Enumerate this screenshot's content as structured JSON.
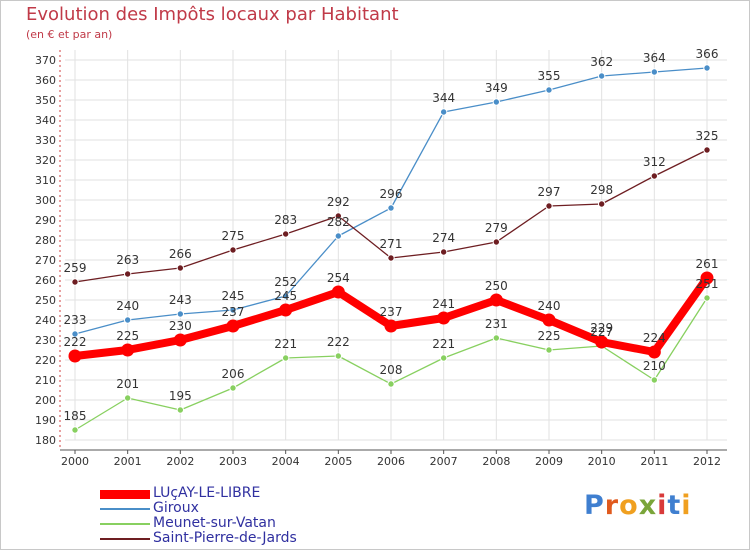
{
  "header": {
    "title": "Evolution des Impôts locaux par Habitant",
    "subtitle": "(en € et par an)"
  },
  "chart_data": {
    "type": "line",
    "title": "Evolution des Impôts locaux par Habitant",
    "subtitle": "(en € et par an)",
    "xlabel": "",
    "ylabel": "",
    "x": [
      "2000",
      "2001",
      "2002",
      "2003",
      "2004",
      "2005",
      "2006",
      "2007",
      "2008",
      "2009",
      "2010",
      "2011",
      "2012"
    ],
    "ylim": [
      180,
      370
    ],
    "yticks": [
      180,
      190,
      200,
      210,
      220,
      230,
      240,
      250,
      260,
      270,
      280,
      290,
      300,
      310,
      320,
      330,
      340,
      350,
      360,
      370
    ],
    "grid": true,
    "legend": "bottom-left",
    "series": [
      {
        "name": "Giroux",
        "color": "#4a8ec8",
        "values": [
          233,
          240,
          243,
          245,
          252,
          282,
          296,
          344,
          349,
          355,
          362,
          364,
          366
        ]
      },
      {
        "name": "Meunet-sur-Vatan",
        "color": "#88d060",
        "values": [
          185,
          201,
          195,
          206,
          221,
          222,
          208,
          221,
          231,
          225,
          227,
          210,
          251
        ]
      },
      {
        "name": "Saint-Pierre-de-Jards",
        "color": "#6e1e22",
        "values": [
          259,
          263,
          266,
          275,
          283,
          292,
          271,
          274,
          279,
          297,
          298,
          312,
          325
        ]
      },
      {
        "name": "LUçAY-LE-LIBRE",
        "color": "#ff0000",
        "highlight": true,
        "values": [
          222,
          225,
          230,
          237,
          245,
          254,
          237,
          241,
          250,
          240,
          229,
          224,
          261
        ]
      }
    ]
  },
  "legend": {
    "items": [
      {
        "label": "LUçAY-LE-LIBRE",
        "color": "#ff0000",
        "text_color": "#3030a0"
      },
      {
        "label": "Giroux",
        "color": "#4a8ec8",
        "text_color": "#3030a0"
      },
      {
        "label": "Meunet-sur-Vatan",
        "color": "#88d060",
        "text_color": "#3030a0"
      },
      {
        "label": "Saint-Pierre-de-Jards",
        "color": "#6e1e22",
        "text_color": "#3030a0"
      }
    ]
  },
  "brand": {
    "letters": [
      "P",
      "r",
      "o",
      "x",
      "i",
      "t",
      "i"
    ],
    "colors": [
      "#3f7fd0",
      "#e05a1e",
      "#f0a020",
      "#7aa53a",
      "#d83a3a",
      "#3f7fd0",
      "#f0a020"
    ]
  }
}
